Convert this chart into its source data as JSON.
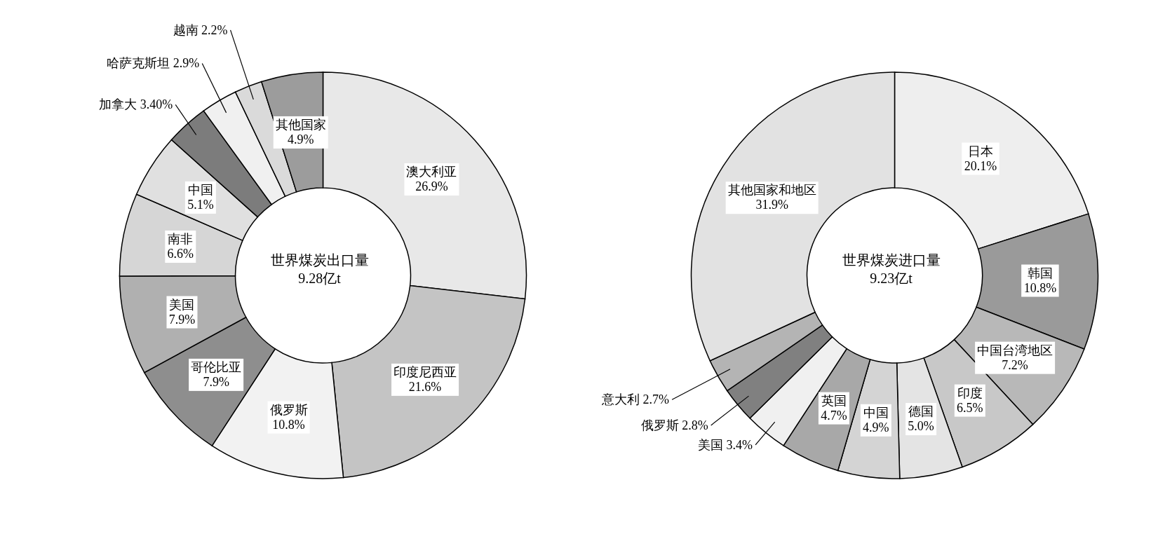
{
  "chart_data": [
    {
      "type": "donut",
      "title": "世界煤炭出口量",
      "subtitle": "9.28亿t",
      "categories": [
        "澳大利亚",
        "印度尼西亚",
        "俄罗斯",
        "哥伦比亚",
        "美国",
        "南非",
        "中国",
        "加拿大",
        "哈萨克斯坦",
        "越南",
        "其他国家"
      ],
      "values": [
        26.9,
        21.6,
        10.8,
        7.9,
        7.9,
        6.6,
        5.1,
        3.4,
        2.9,
        2.2,
        4.9
      ],
      "value_labels": [
        "26.9%",
        "21.6%",
        "10.8%",
        "7.9%",
        "7.9%",
        "6.6%",
        "5.1%",
        "3.40%",
        "2.9%",
        "2.2%",
        "4.9%"
      ],
      "colors": [
        "#e8e8e8",
        "#c4c4c4",
        "#f2f2f2",
        "#8e8e8e",
        "#b0b0b0",
        "#d6d6d6",
        "#e0e0e0",
        "#7c7c7c",
        "#f0f0f0",
        "#dadada",
        "#9c9c9c"
      ]
    },
    {
      "type": "donut",
      "title": "世界煤炭进口量",
      "subtitle": "9.23亿t",
      "categories": [
        "日本",
        "韩国",
        "中国台湾地区",
        "印度",
        "德国",
        "中国",
        "英国",
        "美国",
        "俄罗斯",
        "意大利",
        "其他国家和地区"
      ],
      "values": [
        20.1,
        10.8,
        7.2,
        6.5,
        5.0,
        4.9,
        4.7,
        3.4,
        2.8,
        2.7,
        31.9
      ],
      "value_labels": [
        "20.1%",
        "10.8%",
        "7.2%",
        "6.5%",
        "5.0%",
        "4.9%",
        "4.7%",
        "3.4%",
        "2.8%",
        "2.7%",
        "31.9%"
      ],
      "colors": [
        "#eeeeee",
        "#9a9a9a",
        "#b8b8b8",
        "#c8c8c8",
        "#e4e4e4",
        "#d4d4d4",
        "#a8a8a8",
        "#f0f0f0",
        "#808080",
        "#b4b4b4",
        "#e2e2e2"
      ]
    }
  ]
}
